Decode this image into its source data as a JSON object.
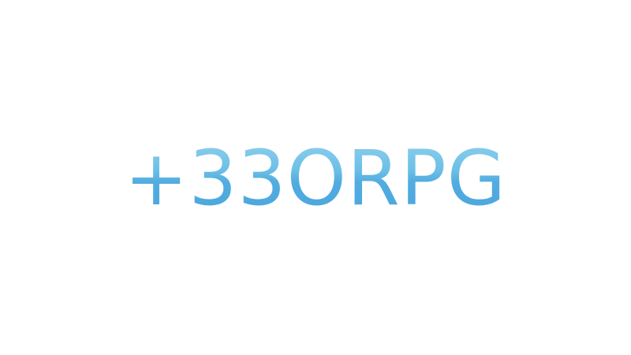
{
  "logo": {
    "text": "+33ORPG"
  },
  "colors": {
    "background": "#ffffff",
    "logo_light": "#8fd0ee",
    "logo_dark": "#4ba6dd"
  }
}
